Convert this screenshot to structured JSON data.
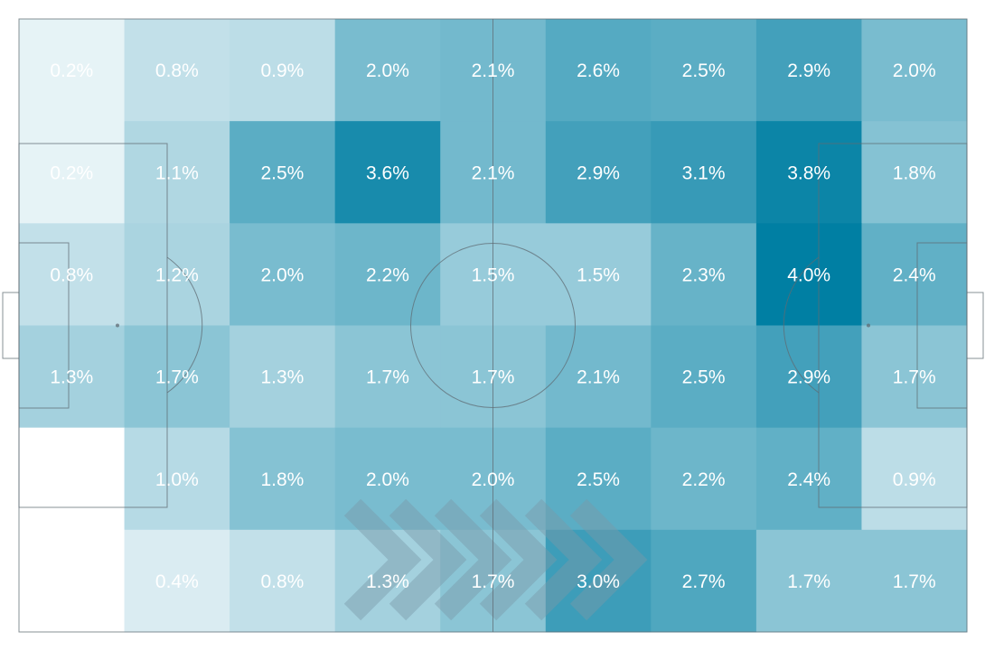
{
  "chart_data": {
    "type": "heatmap",
    "title": "",
    "xlabel": "",
    "ylabel": "",
    "rows": 6,
    "columns": 9,
    "attack_direction": "right",
    "grid": false,
    "legend": "none",
    "colors": {
      "low": "#ffffff",
      "high": "#007fa3",
      "pitch_lines": "#5f6b73",
      "arrow": "#7a9aa8",
      "text": "#ffffff"
    },
    "value_range": [
      0,
      4.0
    ],
    "values": [
      [
        0.2,
        0.8,
        0.9,
        2.0,
        2.1,
        2.6,
        2.5,
        2.9,
        2.0
      ],
      [
        0.2,
        1.1,
        2.5,
        3.6,
        2.1,
        2.9,
        3.1,
        3.8,
        1.8
      ],
      [
        0.8,
        1.2,
        2.0,
        2.2,
        1.5,
        1.5,
        2.3,
        4.0,
        2.4
      ],
      [
        1.3,
        1.7,
        1.3,
        1.7,
        1.7,
        2.1,
        2.5,
        2.9,
        1.7
      ],
      [
        null,
        1.0,
        1.8,
        2.0,
        2.0,
        2.5,
        2.2,
        2.4,
        0.9
      ],
      [
        null,
        0.4,
        0.8,
        1.3,
        1.7,
        3.0,
        2.7,
        1.7,
        1.7
      ]
    ],
    "labels": [
      [
        "0.2%",
        "0.8%",
        "0.9%",
        "2.0%",
        "2.1%",
        "2.6%",
        "2.5%",
        "2.9%",
        "2.0%"
      ],
      [
        "0.2%",
        "1.1%",
        "2.5%",
        "3.6%",
        "2.1%",
        "2.9%",
        "3.1%",
        "3.8%",
        "1.8%"
      ],
      [
        "0.8%",
        "1.2%",
        "2.0%",
        "2.2%",
        "1.5%",
        "1.5%",
        "2.3%",
        "4.0%",
        "2.4%"
      ],
      [
        "1.3%",
        "1.7%",
        "1.3%",
        "1.7%",
        "1.7%",
        "2.1%",
        "2.5%",
        "2.9%",
        "1.7%"
      ],
      [
        "",
        "1.0%",
        "1.8%",
        "2.0%",
        "2.0%",
        "2.5%",
        "2.2%",
        "2.4%",
        "0.9%"
      ],
      [
        "",
        "0.4%",
        "0.8%",
        "1.3%",
        "1.7%",
        "3.0%",
        "2.7%",
        "1.7%",
        "1.7%"
      ]
    ]
  }
}
